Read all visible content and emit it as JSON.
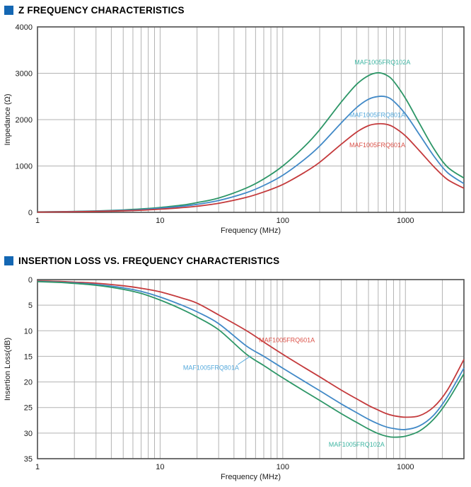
{
  "page": {
    "background": "#ffffff",
    "accent_square_color": "#1467B3"
  },
  "sections": [
    {
      "title": "Z FREQUENCY CHARACTERISTICS"
    },
    {
      "title": "INSERTION LOSS VS. FREQUENCY CHARACTERISTICS"
    }
  ],
  "chart_data": [
    {
      "type": "line",
      "xlabel": "Frequency (MHz)",
      "ylabel": "Impedance (Ω)",
      "xscale": "log",
      "xlim": [
        1,
        3000
      ],
      "ylim": [
        0,
        4000
      ],
      "y_inverted": false,
      "grid": true,
      "xticks": [
        1,
        10,
        100,
        1000
      ],
      "yticks": [
        0,
        1000,
        2000,
        3000,
        4000
      ],
      "x": [
        1,
        1.5,
        2,
        3,
        5,
        7,
        10,
        15,
        20,
        30,
        50,
        70,
        100,
        150,
        200,
        300,
        400,
        500,
        600,
        700,
        800,
        1000,
        1300,
        1700,
        2200,
        3000
      ],
      "series": [
        {
          "name": "MAF1005FRQ102A",
          "color": "#2D9667",
          "label_color": "#3EB5A2",
          "label_at": [
            650,
            3240
          ],
          "values": [
            10,
            15,
            21,
            31,
            52,
            73,
            105,
            155,
            210,
            310,
            520,
            720,
            1000,
            1420,
            1780,
            2380,
            2760,
            2950,
            3010,
            2960,
            2830,
            2460,
            1920,
            1380,
            980,
            740
          ]
        },
        {
          "name": "MAF1005FRQ801A",
          "color": "#4189C7",
          "label_color": "#55A9DC",
          "label_at": [
            590,
            2100
          ],
          "values": [
            8,
            12,
            17,
            26,
            43,
            60,
            88,
            130,
            172,
            255,
            420,
            580,
            800,
            1140,
            1430,
            1930,
            2260,
            2440,
            2500,
            2490,
            2400,
            2120,
            1680,
            1220,
            860,
            620
          ]
        },
        {
          "name": "MAF1005FRQ601A",
          "color": "#C43A3C",
          "label_color": "#DB5148",
          "label_at": [
            590,
            1450
          ],
          "values": [
            6,
            9,
            13,
            20,
            33,
            46,
            68,
            100,
            132,
            196,
            320,
            440,
            600,
            860,
            1080,
            1470,
            1730,
            1870,
            1910,
            1900,
            1840,
            1650,
            1330,
            990,
            710,
            520
          ]
        }
      ]
    },
    {
      "type": "line",
      "xlabel": "Frequency (MHz)",
      "ylabel": "Insertion Loss(dB)",
      "xscale": "log",
      "xlim": [
        1,
        3000
      ],
      "ylim": [
        0,
        35
      ],
      "y_inverted": true,
      "grid": true,
      "xticks": [
        1,
        10,
        100,
        1000
      ],
      "yticks": [
        0,
        5,
        10,
        15,
        20,
        25,
        30,
        35
      ],
      "x": [
        1,
        1.5,
        2,
        3,
        5,
        7,
        10,
        15,
        20,
        30,
        50,
        70,
        100,
        150,
        200,
        300,
        400,
        500,
        600,
        700,
        800,
        1000,
        1300,
        1700,
        2200,
        3000
      ],
      "series": [
        {
          "name": "MAF1005FRQ601A",
          "color": "#C43A3C",
          "label_color": "#DB5148",
          "label_at": [
            108,
            11.8
          ],
          "values": [
            0.25,
            0.35,
            0.5,
            0.7,
            1.2,
            1.7,
            2.4,
            3.6,
            4.6,
            6.9,
            9.9,
            12.2,
            14.6,
            17.2,
            19.0,
            21.6,
            23.3,
            24.6,
            25.5,
            26.2,
            26.6,
            26.9,
            26.6,
            24.9,
            21.6,
            15.6
          ]
        },
        {
          "name": "MAF1005FRQ801A",
          "color": "#4189C7",
          "label_color": "#55A9DC",
          "label_at": [
            26,
            17.2
          ],
          "pointer": {
            "from": [
              43,
              16.6
            ],
            "to": [
              55,
              14.9
            ]
          },
          "values": [
            0.35,
            0.5,
            0.65,
            0.95,
            1.6,
            2.3,
            3.4,
            5.0,
            6.3,
            8.6,
            12.9,
            15.0,
            17.3,
            19.9,
            21.7,
            24.3,
            26.0,
            27.3,
            28.2,
            28.8,
            29.1,
            29.3,
            28.6,
            26.5,
            22.9,
            17.3
          ]
        },
        {
          "name": "MAF1005FRQ102A",
          "color": "#2D9667",
          "label_color": "#3EB5A2",
          "label_at": [
            400,
            32.2
          ],
          "values": [
            0.4,
            0.55,
            0.75,
            1.1,
            1.9,
            2.7,
            4.0,
            5.8,
            7.3,
            9.8,
            14.5,
            16.8,
            19.2,
            21.8,
            23.6,
            26.2,
            27.9,
            29.2,
            30.1,
            30.6,
            30.8,
            30.6,
            29.6,
            27.3,
            23.8,
            18.4
          ]
        }
      ]
    }
  ]
}
